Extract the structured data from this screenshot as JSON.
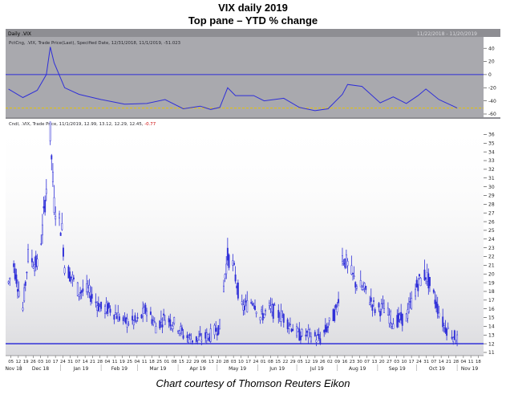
{
  "title": "VIX daily 2019",
  "subtitle": "Top pane – YTD % change",
  "credit": "Chart courtesy of Thomson Reuters Eikon",
  "colors": {
    "series": "#2f2fd8",
    "reference_line": "#2f2fd8",
    "dashed_line": "#e8c400",
    "pane_background": "#a9a9ae",
    "header_strip": "#8e8e93",
    "axis_background": "#ffffff",
    "legend_red": "#cc0000"
  },
  "header": {
    "instrument": "Daily .VIX",
    "date_range": "11/22/2018 - 11/20/2019"
  },
  "top_pane": {
    "legend_prefix": "PctCng, .VIX, Trade Price(Last), Specified Date, 12/31/2018, 11/1/2019, ",
    "legend_value": "-51.023",
    "y_ticks": [
      "40",
      "20",
      "0",
      "-20",
      "-40",
      "-60"
    ],
    "reference_value": 0,
    "dashed_value": -51,
    "ylim": [
      -60,
      50
    ]
  },
  "bottom_pane": {
    "legend_prefix": "Cndl, .VIX, Trade Price, 11/1/2019, 12.99, 13.12, 12.29, 12.45, ",
    "legend_value": "-0.77",
    "y_ticks": [
      "36",
      "35",
      "34",
      "33",
      "32",
      "31",
      "30",
      "29",
      "28",
      "27",
      "26",
      "25",
      "24",
      "23",
      "22",
      "21",
      "20",
      "19",
      "18",
      "17",
      "16",
      "15",
      "14",
      "13",
      "12",
      "11"
    ],
    "reference_value": 12,
    "ylim": [
      11,
      36.5
    ]
  },
  "x_axis": {
    "day_ticks": [
      "05",
      "12",
      "19",
      "26",
      "03",
      "10",
      "17",
      "24",
      "31",
      "07",
      "14",
      "21",
      "28",
      "04",
      "11",
      "19",
      "25",
      "04",
      "11",
      "18",
      "25",
      "01",
      "08",
      "15",
      "22",
      "29",
      "06",
      "13",
      "20",
      "28",
      "03",
      "10",
      "17",
      "24",
      "01",
      "08",
      "15",
      "22",
      "29",
      "05",
      "12",
      "19",
      "26",
      "02",
      "09",
      "16",
      "23",
      "30",
      "07",
      "13",
      "20",
      "27",
      "03",
      "10",
      "17",
      "24",
      "31",
      "07",
      "14",
      "21",
      "28",
      "04",
      "11",
      "18"
    ],
    "month_labels": [
      "Nov 18",
      "Dec 18",
      "Jan 19",
      "Feb 19",
      "Mar 19",
      "Apr 19",
      "May 19",
      "Jun 19",
      "Jul 19",
      "Aug 19",
      "Sep 19",
      "Oct 19",
      "Nov 19"
    ]
  },
  "chart_data": [
    {
      "type": "line",
      "title": "PctCng, .VIX, Trade Price(Last), Specified Date, 12/31/2018, 11/1/2019",
      "x": [
        "2018-11-22",
        "2018-12-03",
        "2018-12-14",
        "2018-12-21",
        "2018-12-24",
        "2018-12-27",
        "2019-01-04",
        "2019-01-15",
        "2019-02-01",
        "2019-02-19",
        "2019-03-08",
        "2019-03-22",
        "2019-04-05",
        "2019-04-18",
        "2019-04-26",
        "2019-05-03",
        "2019-05-09",
        "2019-05-15",
        "2019-05-29",
        "2019-06-06",
        "2019-06-21",
        "2019-07-03",
        "2019-07-15",
        "2019-07-25",
        "2019-08-05",
        "2019-08-09",
        "2019-08-20",
        "2019-09-03",
        "2019-09-13",
        "2019-09-23",
        "2019-10-02",
        "2019-10-08",
        "2019-10-18",
        "2019-10-29",
        "2019-11-01"
      ],
      "values": [
        -22,
        -35,
        -24,
        0,
        42,
        18,
        -20,
        -30,
        -38,
        -45,
        -44,
        -38,
        -52,
        -48,
        -53,
        -50,
        -20,
        -32,
        -32,
        -40,
        -36,
        -50,
        -55,
        -52,
        -30,
        -15,
        -18,
        -43,
        -34,
        -44,
        -32,
        -22,
        -38,
        -48,
        -51
      ],
      "ylim": [
        -60,
        50
      ],
      "reference_lines": [
        0,
        -51
      ]
    },
    {
      "type": "candlestick",
      "title": "Cndl, .VIX, Trade Price, 11/1/2019",
      "x": [
        "2018-11-22",
        "2018-11-26",
        "2018-12-03",
        "2018-12-07",
        "2018-12-14",
        "2018-12-18",
        "2018-12-21",
        "2018-12-24",
        "2018-12-27",
        "2019-01-02",
        "2019-01-04",
        "2019-01-08",
        "2019-01-15",
        "2019-01-22",
        "2019-02-01",
        "2019-02-08",
        "2019-02-19",
        "2019-03-01",
        "2019-03-08",
        "2019-03-15",
        "2019-03-22",
        "2019-04-01",
        "2019-04-05",
        "2019-04-12",
        "2019-04-18",
        "2019-04-26",
        "2019-05-03",
        "2019-05-07",
        "2019-05-09",
        "2019-05-13",
        "2019-05-20",
        "2019-05-29",
        "2019-06-03",
        "2019-06-10",
        "2019-06-21",
        "2019-07-03",
        "2019-07-12",
        "2019-07-19",
        "2019-07-25",
        "2019-08-01",
        "2019-08-05",
        "2019-08-09",
        "2019-08-15",
        "2019-08-23",
        "2019-08-30",
        "2019-09-06",
        "2019-09-13",
        "2019-09-23",
        "2019-10-02",
        "2019-10-08",
        "2019-10-15",
        "2019-10-22",
        "2019-11-01"
      ],
      "values": [
        19,
        21,
        16,
        22,
        21,
        25,
        30,
        36,
        28,
        25,
        21,
        20,
        18,
        18,
        16,
        16,
        14.5,
        14.5,
        16,
        14,
        15,
        14,
        13,
        12.5,
        12.5,
        13,
        14,
        20,
        22,
        21,
        16,
        17,
        15,
        16,
        15,
        13,
        13,
        12.5,
        14,
        16,
        22,
        21,
        19,
        18,
        16,
        16,
        14.5,
        15,
        19,
        20,
        17,
        14,
        12.5
      ],
      "ylim": [
        11,
        36.5
      ],
      "reference_lines": [
        12
      ]
    }
  ]
}
